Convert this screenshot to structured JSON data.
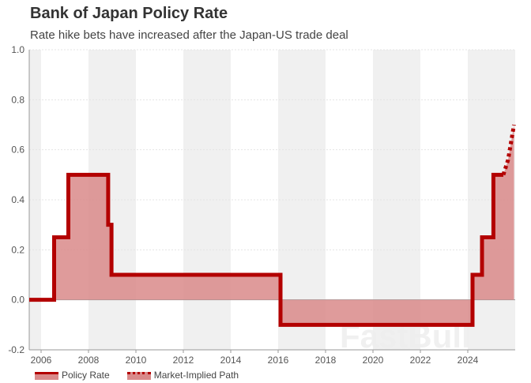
{
  "title": "Bank of Japan Policy Rate",
  "subtitle": "Rate hike bets have increased after the Japan-US trade deal",
  "watermark": "FastBull",
  "colors": {
    "line": "#b30000",
    "fill": "#d98a8a",
    "band": "#f0f0f0"
  },
  "chart_data": {
    "type": "area",
    "xlim": [
      2005.5,
      2026
    ],
    "ylim": [
      -0.2,
      1.0
    ],
    "xticks": [
      2006,
      2008,
      2010,
      2012,
      2014,
      2016,
      2018,
      2020,
      2022,
      2024
    ],
    "yticks": [
      -0.2,
      0.0,
      0.2,
      0.4,
      0.6,
      0.8,
      1.0
    ],
    "grid": true,
    "legend": "bottom-left",
    "series": [
      {
        "name": "Policy Rate",
        "style": "step",
        "points": [
          [
            2005.5,
            0
          ],
          [
            2006.55,
            0
          ],
          [
            2006.55,
            0.25
          ],
          [
            2007.15,
            0.25
          ],
          [
            2007.15,
            0.5
          ],
          [
            2008.83,
            0.5
          ],
          [
            2008.83,
            0.3
          ],
          [
            2008.97,
            0.3
          ],
          [
            2008.97,
            0.1
          ],
          [
            2016.1,
            0.1
          ],
          [
            2016.1,
            -0.1
          ],
          [
            2024.2,
            -0.1
          ],
          [
            2024.2,
            0.1
          ],
          [
            2024.6,
            0.1
          ],
          [
            2024.6,
            0.25
          ],
          [
            2025.08,
            0.25
          ],
          [
            2025.08,
            0.5
          ],
          [
            2025.5,
            0.5
          ]
        ]
      },
      {
        "name": "Market-Implied Path",
        "style": "dotted",
        "points": [
          [
            2025.5,
            0.5
          ],
          [
            2025.7,
            0.56
          ],
          [
            2025.95,
            0.7
          ]
        ]
      }
    ]
  },
  "legend_labels": [
    "Policy Rate",
    "Market-Implied Path"
  ]
}
